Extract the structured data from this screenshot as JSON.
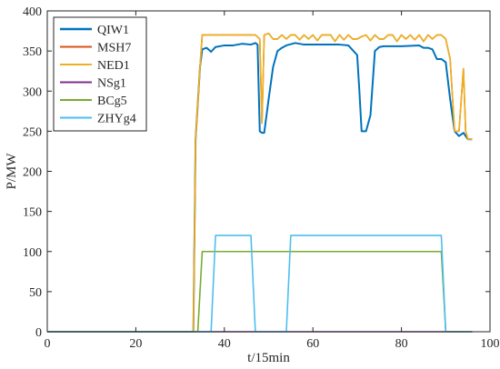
{
  "chart_data": {
    "type": "line",
    "title": "",
    "xlabel": "t/15min",
    "ylabel": "P/MW",
    "xlim": [
      0,
      100
    ],
    "ylim": [
      0,
      400
    ],
    "xticks": [
      0,
      20,
      40,
      60,
      80,
      100
    ],
    "yticks": [
      0,
      50,
      100,
      150,
      200,
      250,
      300,
      350,
      400
    ],
    "grid": false,
    "legend": "top-left",
    "series": [
      {
        "name": "QIW1",
        "color": "#0072bd",
        "points": [
          [
            0,
            0
          ],
          [
            33,
            0
          ],
          [
            33.5,
            240
          ],
          [
            34.5,
            330
          ],
          [
            35,
            352
          ],
          [
            36,
            354
          ],
          [
            37,
            349
          ],
          [
            38,
            355
          ],
          [
            40,
            357
          ],
          [
            42,
            357
          ],
          [
            44,
            359
          ],
          [
            46,
            358
          ],
          [
            47,
            360
          ],
          [
            47.5,
            358
          ],
          [
            48,
            250
          ],
          [
            48.5,
            248
          ],
          [
            49,
            248
          ],
          [
            50,
            290
          ],
          [
            51,
            330
          ],
          [
            52,
            350
          ],
          [
            53,
            354
          ],
          [
            54,
            357
          ],
          [
            56,
            360
          ],
          [
            58,
            358
          ],
          [
            60,
            358
          ],
          [
            62,
            358
          ],
          [
            64,
            358
          ],
          [
            66,
            358
          ],
          [
            68,
            357
          ],
          [
            70,
            345
          ],
          [
            70.5,
            300
          ],
          [
            71,
            250
          ],
          [
            72,
            250
          ],
          [
            73,
            270
          ],
          [
            74,
            350
          ],
          [
            75,
            355
          ],
          [
            76,
            356
          ],
          [
            80,
            356
          ],
          [
            84,
            357
          ],
          [
            85,
            354
          ],
          [
            86,
            354
          ],
          [
            87,
            352
          ],
          [
            88,
            340
          ],
          [
            89,
            340
          ],
          [
            90,
            336
          ],
          [
            91,
            290
          ],
          [
            92,
            250
          ],
          [
            93,
            244
          ],
          [
            94,
            248
          ],
          [
            95,
            240
          ],
          [
            96,
            240
          ]
        ]
      },
      {
        "name": "MSH7",
        "color": "#d95319",
        "points": [
          [
            0,
            0
          ],
          [
            33,
            0
          ],
          [
            33.5,
            240
          ],
          [
            34.5,
            330
          ],
          [
            35,
            370
          ],
          [
            37,
            370
          ],
          [
            40,
            370
          ],
          [
            44,
            370
          ],
          [
            47,
            370
          ],
          [
            48,
            365
          ],
          [
            48.5,
            260
          ],
          [
            49,
            370
          ],
          [
            50,
            372
          ],
          [
            51,
            365
          ],
          [
            52,
            365
          ],
          [
            53,
            370
          ],
          [
            54,
            365
          ],
          [
            55,
            370
          ],
          [
            56,
            370
          ],
          [
            57,
            364
          ],
          [
            58,
            370
          ],
          [
            59,
            365
          ],
          [
            60,
            370
          ],
          [
            61,
            363
          ],
          [
            62,
            370
          ],
          [
            64,
            370
          ],
          [
            65,
            362
          ],
          [
            66,
            370
          ],
          [
            67,
            364
          ],
          [
            68,
            370
          ],
          [
            69,
            365
          ],
          [
            70,
            365
          ],
          [
            71,
            368
          ],
          [
            72,
            370
          ],
          [
            73,
            363
          ],
          [
            74,
            370
          ],
          [
            75,
            365
          ],
          [
            76,
            365
          ],
          [
            77,
            370
          ],
          [
            78,
            370
          ],
          [
            79,
            362
          ],
          [
            80,
            370
          ],
          [
            81,
            365
          ],
          [
            82,
            370
          ],
          [
            83,
            364
          ],
          [
            84,
            370
          ],
          [
            85,
            362
          ],
          [
            86,
            370
          ],
          [
            87,
            365
          ],
          [
            88,
            370
          ],
          [
            89,
            370
          ],
          [
            90,
            365
          ],
          [
            91,
            340
          ],
          [
            92,
            250
          ],
          [
            93,
            250
          ],
          [
            94,
            328
          ],
          [
            94.5,
            250
          ],
          [
            95,
            240
          ],
          [
            96,
            240
          ]
        ]
      },
      {
        "name": "NED1",
        "color": "#edb120",
        "points": [
          [
            0,
            0
          ],
          [
            33,
            0
          ],
          [
            33.5,
            240
          ],
          [
            34.5,
            330
          ],
          [
            35,
            370
          ],
          [
            37,
            370
          ],
          [
            40,
            370
          ],
          [
            44,
            370
          ],
          [
            47,
            370
          ],
          [
            48,
            365
          ],
          [
            48.5,
            260
          ],
          [
            49,
            370
          ],
          [
            50,
            372
          ],
          [
            51,
            365
          ],
          [
            52,
            365
          ],
          [
            53,
            370
          ],
          [
            54,
            365
          ],
          [
            55,
            370
          ],
          [
            56,
            370
          ],
          [
            57,
            364
          ],
          [
            58,
            370
          ],
          [
            59,
            365
          ],
          [
            60,
            370
          ],
          [
            61,
            363
          ],
          [
            62,
            370
          ],
          [
            64,
            370
          ],
          [
            65,
            362
          ],
          [
            66,
            370
          ],
          [
            67,
            364
          ],
          [
            68,
            370
          ],
          [
            69,
            365
          ],
          [
            70,
            365
          ],
          [
            71,
            368
          ],
          [
            72,
            370
          ],
          [
            73,
            363
          ],
          [
            74,
            370
          ],
          [
            75,
            365
          ],
          [
            76,
            365
          ],
          [
            77,
            370
          ],
          [
            78,
            370
          ],
          [
            79,
            362
          ],
          [
            80,
            370
          ],
          [
            81,
            365
          ],
          [
            82,
            370
          ],
          [
            83,
            364
          ],
          [
            84,
            370
          ],
          [
            85,
            362
          ],
          [
            86,
            370
          ],
          [
            87,
            365
          ],
          [
            88,
            370
          ],
          [
            89,
            370
          ],
          [
            90,
            365
          ],
          [
            91,
            340
          ],
          [
            92,
            250
          ],
          [
            93,
            250
          ],
          [
            94,
            328
          ],
          [
            94.5,
            250
          ],
          [
            95,
            240
          ],
          [
            96,
            240
          ]
        ]
      },
      {
        "name": "NSg1",
        "color": "#7e2f8e",
        "points": [
          [
            0,
            0
          ],
          [
            96,
            0
          ]
        ]
      },
      {
        "name": "BCg5",
        "color": "#77ac30",
        "points": [
          [
            0,
            0
          ],
          [
            34,
            0
          ],
          [
            35,
            100
          ],
          [
            89,
            100
          ],
          [
            90,
            0
          ],
          [
            96,
            0
          ]
        ]
      },
      {
        "name": "ZHYg4",
        "color": "#4dbeee",
        "points": [
          [
            0,
            0
          ],
          [
            37,
            0
          ],
          [
            38,
            120
          ],
          [
            46,
            120
          ],
          [
            47,
            0
          ],
          [
            54,
            0
          ],
          [
            55,
            120
          ],
          [
            89,
            120
          ],
          [
            90,
            0
          ],
          [
            96,
            0
          ]
        ]
      }
    ]
  }
}
